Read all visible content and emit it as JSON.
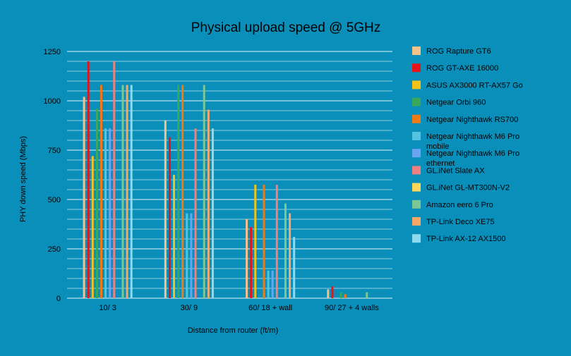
{
  "chart_data": {
    "type": "bar",
    "title": "Physical upload speed @ 5GHz",
    "xlabel": "Distance from router (ft/m)",
    "ylabel": "PHY down speed (Mbps)",
    "ylim": [
      0,
      1250
    ],
    "y_ticks": [
      0,
      250,
      500,
      750,
      1000,
      1250
    ],
    "grid": true,
    "legend_position": "right",
    "categories": [
      "10/ 3",
      "30/ 9",
      "60/ 18 + wall",
      "90/ 27 + 4 walls"
    ],
    "series": [
      {
        "name": "ROG Rapture GT6",
        "color": "#f6c28b",
        "values": [
          1020,
          900,
          400,
          45
        ]
      },
      {
        "name": "ROG GT-AXE 16000",
        "color": "#e8141a",
        "values": [
          1200,
          815,
          360,
          60
        ]
      },
      {
        "name": "ASUS AX3000 RT-AX57 Go",
        "color": "#f5c217",
        "values": [
          720,
          625,
          575,
          0
        ]
      },
      {
        "name": "Netgear Orbi 960",
        "color": "#3aa85a",
        "values": [
          960,
          1080,
          0,
          30
        ]
      },
      {
        "name": "Netgear Nighthawk RS700",
        "color": "#f07a14",
        "values": [
          1080,
          1080,
          575,
          20
        ]
      },
      {
        "name": "Netgear Nighthawk M6 Pro mobile",
        "color": "#55c2e0",
        "values": [
          860,
          430,
          140,
          0
        ]
      },
      {
        "name": "Netgear Nighthawk M6 Pro ethernet",
        "color": "#6aa5f2",
        "values": [
          860,
          430,
          140,
          0
        ]
      },
      {
        "name": "GL.iNet Slate AX",
        "color": "#ee8080",
        "values": [
          1200,
          860,
          575,
          0
        ]
      },
      {
        "name": "GL.iNet GL-MT300N-V2",
        "color": "#fbd85a",
        "values": [
          0,
          0,
          0,
          0
        ]
      },
      {
        "name": "Amazon eero 6 Pro",
        "color": "#7cc794",
        "values": [
          1080,
          1080,
          480,
          30
        ]
      },
      {
        "name": "TP-Link Deco XE75",
        "color": "#f7a868",
        "values": [
          1080,
          955,
          430,
          0
        ]
      },
      {
        "name": "TP-Link AX-12 AX1500",
        "color": "#8fdaec",
        "values": [
          1080,
          860,
          310,
          0
        ]
      }
    ]
  }
}
